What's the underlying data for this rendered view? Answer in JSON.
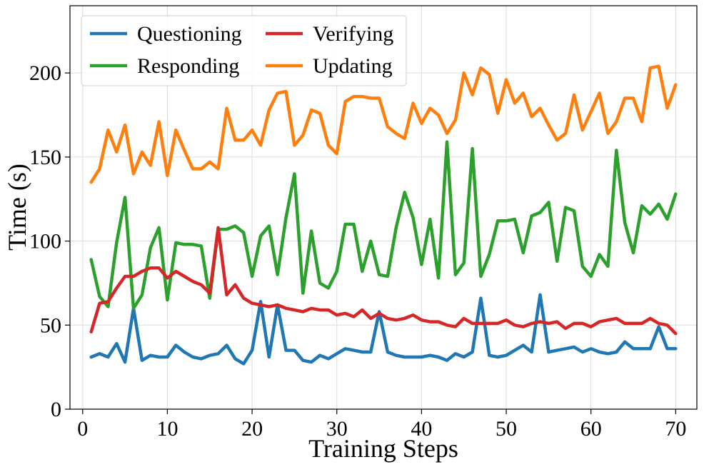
{
  "chart_data": {
    "type": "line",
    "title": "",
    "xlabel": "Training Steps",
    "ylabel": "Time (s)",
    "xlim": [
      -1.5,
      72.5
    ],
    "ylim": [
      0,
      240
    ],
    "xticks": [
      0,
      10,
      20,
      30,
      40,
      50,
      60,
      70
    ],
    "yticks": [
      0,
      50,
      100,
      150,
      200
    ],
    "grid": true,
    "legend_position": "top-left",
    "legend_columns": 2,
    "x": [
      1,
      2,
      3,
      4,
      5,
      6,
      7,
      8,
      9,
      10,
      11,
      12,
      13,
      14,
      15,
      16,
      17,
      18,
      19,
      20,
      21,
      22,
      23,
      24,
      25,
      26,
      27,
      28,
      29,
      30,
      31,
      32,
      33,
      34,
      35,
      36,
      37,
      38,
      39,
      40,
      41,
      42,
      43,
      44,
      45,
      46,
      47,
      48,
      49,
      50,
      51,
      52,
      53,
      54,
      55,
      56,
      57,
      58,
      59,
      60,
      61,
      62,
      63,
      64,
      65,
      66,
      67,
      68,
      69,
      70
    ],
    "series": [
      {
        "name": "Questioning",
        "color": "#1f77b4",
        "values": [
          31,
          33,
          31,
          39,
          28,
          60,
          29,
          32,
          31,
          31,
          38,
          34,
          31,
          30,
          32,
          33,
          38,
          30,
          27,
          35,
          64,
          31,
          62,
          35,
          35,
          29,
          28,
          32,
          30,
          33,
          36,
          35,
          34,
          34,
          58,
          34,
          32,
          31,
          31,
          31,
          32,
          31,
          29,
          33,
          31,
          34,
          66,
          32,
          31,
          32,
          35,
          38,
          34,
          68,
          34,
          35,
          36,
          37,
          34,
          36,
          34,
          33,
          34,
          40,
          36,
          36,
          36,
          49,
          36,
          36
        ]
      },
      {
        "name": "Responding",
        "color": "#2ca02c",
        "values": [
          89,
          67,
          61,
          99,
          126,
          60,
          68,
          96,
          108,
          65,
          99,
          98,
          98,
          97,
          66,
          107,
          107,
          109,
          105,
          79,
          103,
          109,
          80,
          114,
          140,
          69,
          106,
          75,
          72,
          82,
          110,
          110,
          82,
          100,
          80,
          79,
          108,
          129,
          114,
          86,
          113,
          78,
          159,
          80,
          87,
          155,
          79,
          92,
          112,
          112,
          113,
          93,
          115,
          117,
          123,
          88,
          120,
          118,
          85,
          79,
          92,
          85,
          154,
          111,
          93,
          121,
          116,
          122,
          113,
          128
        ]
      },
      {
        "name": "Verifying",
        "color": "#d62728",
        "values": [
          46,
          63,
          64,
          72,
          79,
          79,
          82,
          84,
          84,
          78,
          82,
          79,
          76,
          74,
          69,
          108,
          68,
          74,
          66,
          63,
          62,
          61,
          62,
          60,
          59,
          58,
          60,
          59,
          59,
          56,
          57,
          55,
          59,
          54,
          57,
          54,
          53,
          54,
          56,
          53,
          52,
          52,
          50,
          49,
          54,
          51,
          51,
          51,
          51,
          53,
          50,
          49,
          51,
          52,
          51,
          52,
          48,
          51,
          51,
          49,
          52,
          53,
          54,
          51,
          51,
          51,
          54,
          51,
          50,
          45
        ]
      },
      {
        "name": "Updating",
        "color": "#ff7f0e",
        "values": [
          135,
          143,
          166,
          153,
          169,
          140,
          153,
          145,
          171,
          139,
          166,
          154,
          143,
          143,
          147,
          143,
          179,
          160,
          160,
          166,
          157,
          178,
          188,
          189,
          157,
          163,
          178,
          176,
          157,
          152,
          183,
          186,
          186,
          185,
          185,
          168,
          164,
          161,
          182,
          170,
          179,
          175,
          164,
          172,
          200,
          187,
          203,
          199,
          176,
          196,
          182,
          188,
          174,
          179,
          169,
          160,
          164,
          187,
          166,
          177,
          188,
          164,
          171,
          185,
          185,
          171,
          203,
          204,
          179,
          193
        ]
      }
    ]
  }
}
